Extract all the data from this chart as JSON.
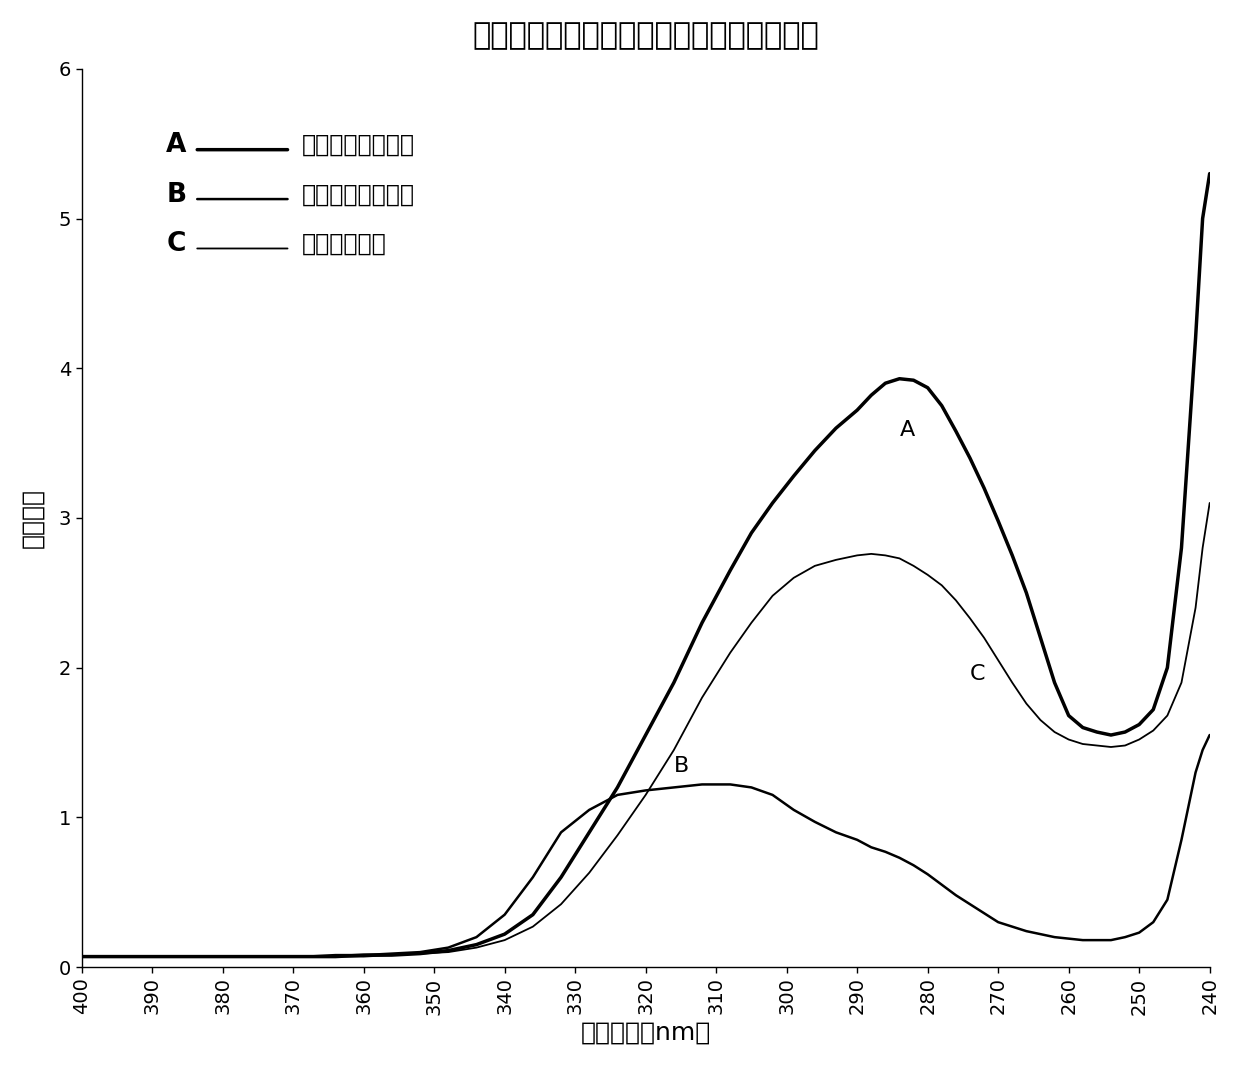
{
  "title": "二种偶联法合成恩诺沙星偶联物紫外检测图",
  "xlabel": "检测波长（nm）",
  "ylabel": "吸光度值",
  "label_A": "A",
  "label_B": "B",
  "label_C": "C",
  "legend_A_text": "碳二亚胺法偶联物",
  "legend_B_text": "混合酸酐法偶联物",
  "legend_C_text": "牛血清白蛋白",
  "xlim_left": 400,
  "xlim_right": 240,
  "ylim": [
    0,
    6
  ],
  "yticks": [
    0,
    1,
    2,
    3,
    4,
    5,
    6
  ],
  "xticks": [
    400,
    390,
    380,
    370,
    360,
    350,
    340,
    330,
    320,
    310,
    300,
    290,
    280,
    270,
    260,
    250,
    240
  ],
  "curve_A_x": [
    400,
    396,
    392,
    388,
    384,
    380,
    376,
    372,
    368,
    364,
    360,
    356,
    352,
    348,
    344,
    340,
    336,
    332,
    328,
    324,
    320,
    316,
    312,
    308,
    305,
    302,
    299,
    296,
    293,
    290,
    288,
    286,
    284,
    282,
    280,
    278,
    276,
    274,
    272,
    270,
    268,
    266,
    264,
    262,
    260,
    258,
    256,
    254,
    252,
    250,
    248,
    246,
    244,
    242,
    241,
    240
  ],
  "curve_A_y": [
    0.07,
    0.07,
    0.07,
    0.07,
    0.07,
    0.07,
    0.07,
    0.07,
    0.07,
    0.07,
    0.08,
    0.08,
    0.09,
    0.11,
    0.15,
    0.22,
    0.35,
    0.6,
    0.9,
    1.2,
    1.55,
    1.9,
    2.3,
    2.65,
    2.9,
    3.1,
    3.28,
    3.45,
    3.6,
    3.72,
    3.82,
    3.9,
    3.93,
    3.92,
    3.87,
    3.75,
    3.58,
    3.4,
    3.2,
    2.98,
    2.75,
    2.5,
    2.2,
    1.9,
    1.68,
    1.6,
    1.57,
    1.55,
    1.57,
    1.62,
    1.72,
    2.0,
    2.8,
    4.2,
    5.0,
    5.3
  ],
  "curve_B_x": [
    400,
    396,
    392,
    388,
    384,
    380,
    376,
    372,
    368,
    364,
    360,
    356,
    352,
    348,
    344,
    340,
    336,
    332,
    328,
    324,
    320,
    316,
    312,
    308,
    305,
    302,
    299,
    296,
    293,
    290,
    288,
    286,
    284,
    282,
    280,
    278,
    276,
    274,
    272,
    270,
    268,
    266,
    264,
    262,
    260,
    258,
    256,
    254,
    252,
    250,
    248,
    246,
    244,
    242,
    241,
    240
  ],
  "curve_B_y": [
    0.07,
    0.07,
    0.07,
    0.07,
    0.07,
    0.07,
    0.07,
    0.07,
    0.07,
    0.08,
    0.08,
    0.09,
    0.1,
    0.13,
    0.2,
    0.35,
    0.6,
    0.9,
    1.05,
    1.15,
    1.18,
    1.2,
    1.22,
    1.22,
    1.2,
    1.15,
    1.05,
    0.97,
    0.9,
    0.85,
    0.8,
    0.77,
    0.73,
    0.68,
    0.62,
    0.55,
    0.48,
    0.42,
    0.36,
    0.3,
    0.27,
    0.24,
    0.22,
    0.2,
    0.19,
    0.18,
    0.18,
    0.18,
    0.2,
    0.23,
    0.3,
    0.45,
    0.85,
    1.3,
    1.45,
    1.55
  ],
  "curve_C_x": [
    400,
    396,
    392,
    388,
    384,
    380,
    376,
    372,
    368,
    364,
    360,
    356,
    352,
    348,
    344,
    340,
    336,
    332,
    328,
    324,
    320,
    316,
    312,
    308,
    305,
    302,
    299,
    296,
    293,
    290,
    288,
    286,
    284,
    282,
    280,
    278,
    276,
    274,
    272,
    270,
    268,
    266,
    264,
    262,
    260,
    258,
    256,
    254,
    252,
    250,
    248,
    246,
    244,
    242,
    241,
    240
  ],
  "curve_C_y": [
    0.07,
    0.07,
    0.07,
    0.07,
    0.07,
    0.07,
    0.07,
    0.07,
    0.07,
    0.07,
    0.07,
    0.08,
    0.09,
    0.1,
    0.13,
    0.18,
    0.27,
    0.42,
    0.63,
    0.88,
    1.15,
    1.45,
    1.8,
    2.1,
    2.3,
    2.48,
    2.6,
    2.68,
    2.72,
    2.75,
    2.76,
    2.75,
    2.73,
    2.68,
    2.62,
    2.55,
    2.45,
    2.33,
    2.2,
    2.05,
    1.9,
    1.76,
    1.65,
    1.57,
    1.52,
    1.49,
    1.48,
    1.47,
    1.48,
    1.52,
    1.58,
    1.68,
    1.9,
    2.4,
    2.8,
    3.1
  ],
  "line_color": "#000000",
  "bg_color": "#ffffff",
  "title_fontsize": 22,
  "axis_label_fontsize": 18,
  "tick_fontsize": 14,
  "legend_fontsize": 17,
  "lw_A": 2.5,
  "lw_B": 1.8,
  "lw_C": 1.3
}
